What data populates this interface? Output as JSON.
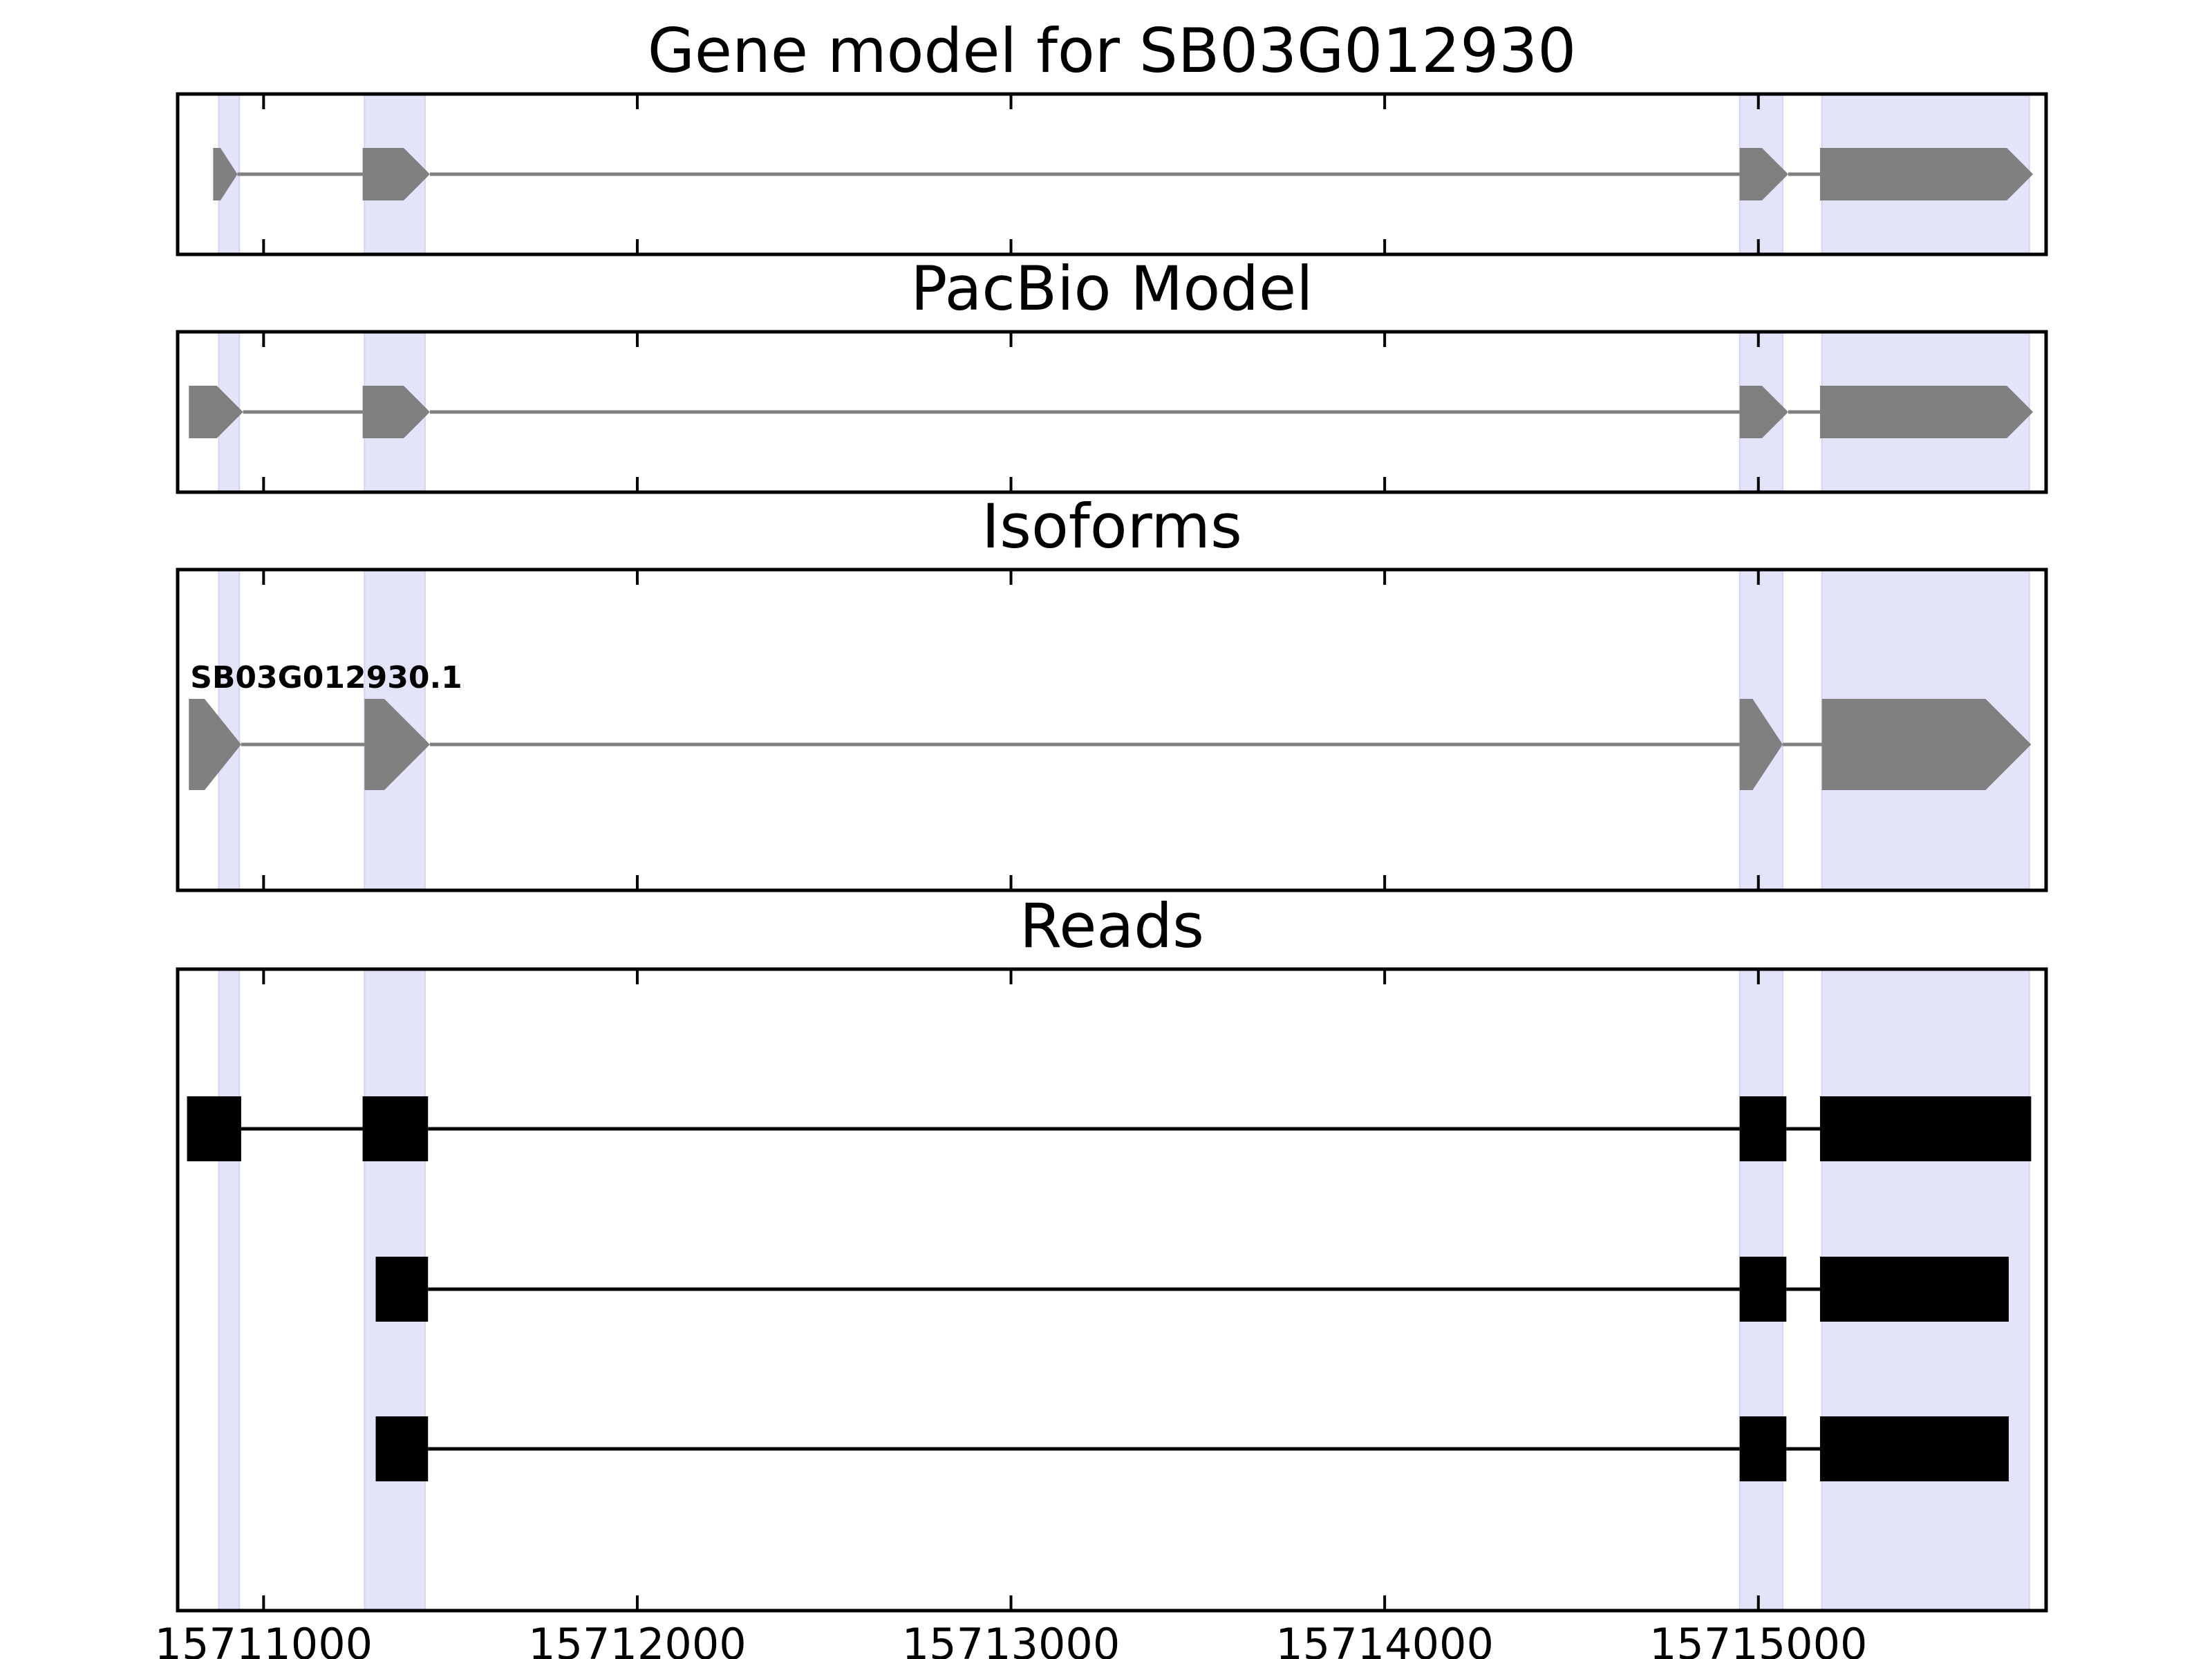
{
  "chart_data": {
    "type": "gene-structure",
    "x_ticks": [
      15711000,
      15712000,
      15713000,
      15714000,
      15715000
    ],
    "xlim": [
      15710770,
      15715770
    ],
    "colors": {
      "highlight": "#e3e3fa",
      "model": "#808080",
      "reads": "#000000",
      "intron_model": "#808080",
      "intron_reads": "#000000"
    },
    "highlight_regions": [
      [
        15710880,
        15710935
      ],
      [
        15711270,
        15711432
      ],
      [
        15714950,
        15715065
      ],
      [
        15715170,
        15715725
      ]
    ],
    "panels": [
      {
        "title": "Gene model for SB03G012930",
        "kind": "model",
        "tracks": [
          {
            "label": "",
            "exons": [
              [
                15710865,
                15710930
              ],
              [
                15711265,
                15711445
              ],
              [
                15714950,
                15715080
              ],
              [
                15715165,
                15715735
              ]
            ]
          }
        ]
      },
      {
        "title": "PacBio Model",
        "kind": "model",
        "tracks": [
          {
            "label": "",
            "exons": [
              [
                15710800,
                15710945
              ],
              [
                15711265,
                15711445
              ],
              [
                15714950,
                15715080
              ],
              [
                15715165,
                15715735
              ]
            ]
          }
        ]
      },
      {
        "title": "Isoforms",
        "kind": "model",
        "tracks": [
          {
            "label": "SB03G012930.1",
            "exons": [
              [
                15710800,
                15710940
              ],
              [
                15711270,
                15711445
              ],
              [
                15714950,
                15715065
              ],
              [
                15715170,
                15715730
              ]
            ]
          }
        ]
      },
      {
        "title": "Reads",
        "kind": "reads",
        "tracks": [
          {
            "label": "",
            "exons": [
              [
                15710795,
                15710940
              ],
              [
                15711265,
                15711440
              ],
              [
                15714950,
                15715075
              ],
              [
                15715165,
                15715730
              ]
            ]
          },
          {
            "label": "",
            "exons": [
              [
                15711300,
                15711440
              ],
              [
                15714950,
                15715075
              ],
              [
                15715165,
                15715670
              ]
            ]
          },
          {
            "label": "",
            "exons": [
              [
                15711300,
                15711440
              ],
              [
                15714950,
                15715075
              ],
              [
                15715165,
                15715670
              ]
            ]
          }
        ]
      }
    ]
  }
}
